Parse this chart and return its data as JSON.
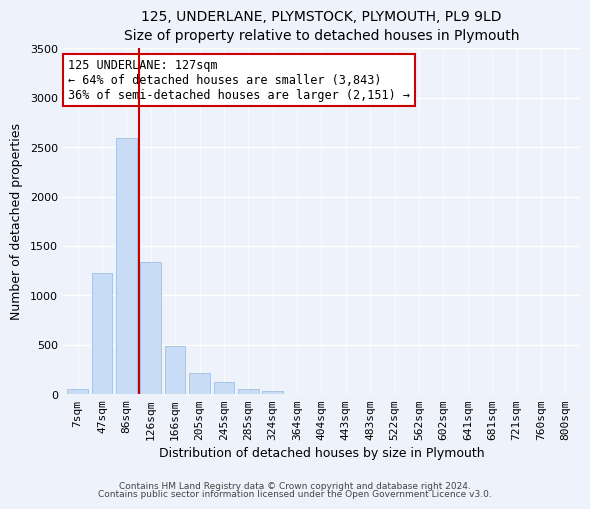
{
  "title": "125, UNDERLANE, PLYMSTOCK, PLYMOUTH, PL9 9LD",
  "subtitle": "Size of property relative to detached houses in Plymouth",
  "xlabel": "Distribution of detached houses by size in Plymouth",
  "ylabel": "Number of detached properties",
  "bar_color": "#c9dcf5",
  "bar_edge_color": "#a8c4e8",
  "categories": [
    "7sqm",
    "47sqm",
    "86sqm",
    "126sqm",
    "166sqm",
    "205sqm",
    "245sqm",
    "285sqm",
    "324sqm",
    "364sqm",
    "404sqm",
    "443sqm",
    "483sqm",
    "522sqm",
    "562sqm",
    "602sqm",
    "641sqm",
    "681sqm",
    "721sqm",
    "760sqm",
    "800sqm"
  ],
  "values": [
    55,
    1230,
    2590,
    1340,
    490,
    210,
    120,
    50,
    30,
    0,
    0,
    0,
    0,
    0,
    0,
    0,
    0,
    0,
    0,
    0,
    0
  ],
  "ylim": [
    0,
    3500
  ],
  "yticks": [
    0,
    500,
    1000,
    1500,
    2000,
    2500,
    3000,
    3500
  ],
  "vline_color": "#cc0000",
  "annotation_line1": "125 UNDERLANE: 127sqm",
  "annotation_line2": "← 64% of detached houses are smaller (3,843)",
  "annotation_line3": "36% of semi-detached houses are larger (2,151) →",
  "annotation_box_color": "#ffffff",
  "annotation_box_edge": "#cc0000",
  "footnote1": "Contains HM Land Registry data © Crown copyright and database right 2024.",
  "footnote2": "Contains public sector information licensed under the Open Government Licence v3.0.",
  "bg_color": "#eef2fb",
  "plot_bg_color": "#eef2fb",
  "grid_color": "#ffffff",
  "title_fontsize": 10,
  "subtitle_fontsize": 9,
  "axis_label_fontsize": 9,
  "tick_fontsize": 8,
  "annotation_fontsize": 8.5,
  "footnote_fontsize": 6.5
}
